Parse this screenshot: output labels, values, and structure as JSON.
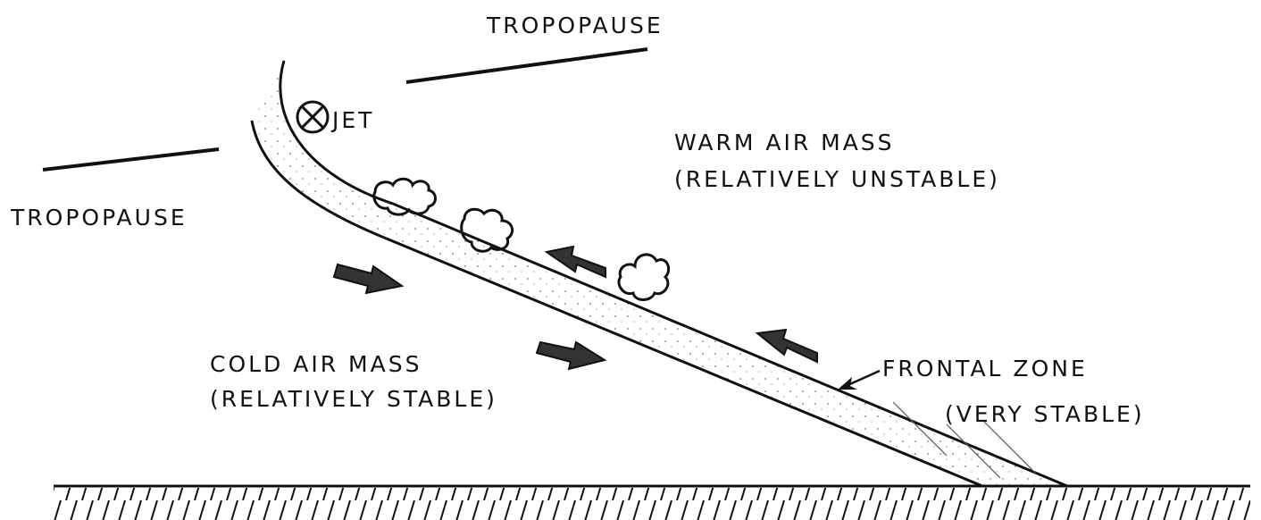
{
  "labels": {
    "tropopause_upper": "TROPOPAUSE",
    "tropopause_lower": "TROPOPAUSE",
    "jet": "JET",
    "warm_air": [
      "WARM AIR MASS",
      "(RELATIVELY UNSTABLE)"
    ],
    "cold_air": [
      "COLD AIR MASS",
      "(RELATIVELY STABLE)"
    ],
    "frontal_zone": [
      "FRONTAL ZONE",
      "(VERY STABLE)"
    ]
  }
}
